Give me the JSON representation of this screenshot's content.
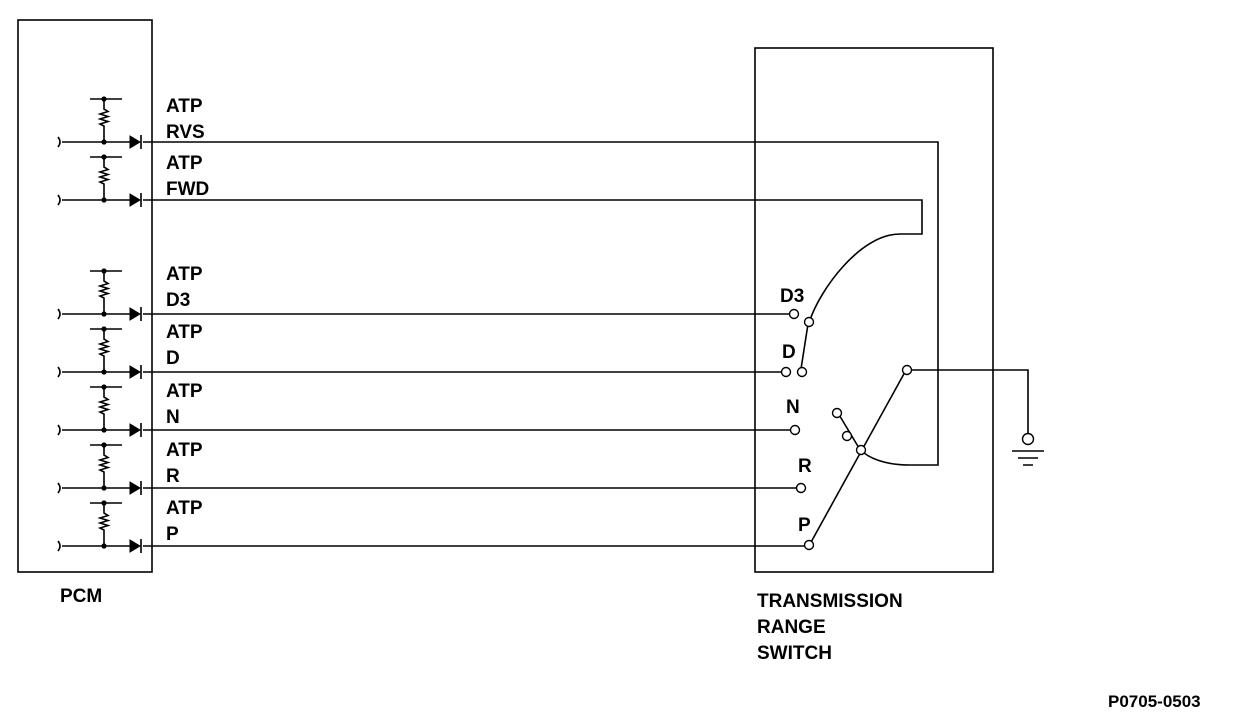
{
  "pcm": {
    "label": "PCM"
  },
  "switch": {
    "title_lines": [
      "TRANSMISSION",
      "RANGE",
      "SWITCH"
    ]
  },
  "signals": [
    {
      "id": "rvs",
      "line1": "ATP",
      "line2": "RVS"
    },
    {
      "id": "fwd",
      "line1": "ATP",
      "line2": "FWD"
    },
    {
      "id": "d3",
      "line1": "ATP",
      "line2": "D3"
    },
    {
      "id": "d",
      "line1": "ATP",
      "line2": "D"
    },
    {
      "id": "n",
      "line1": "ATP",
      "line2": "N"
    },
    {
      "id": "r",
      "line1": "ATP",
      "line2": "R"
    },
    {
      "id": "p",
      "line1": "ATP",
      "line2": "P"
    }
  ],
  "positions": [
    "D3",
    "D",
    "N",
    "R",
    "P"
  ],
  "figure_id": "P0705-0503"
}
